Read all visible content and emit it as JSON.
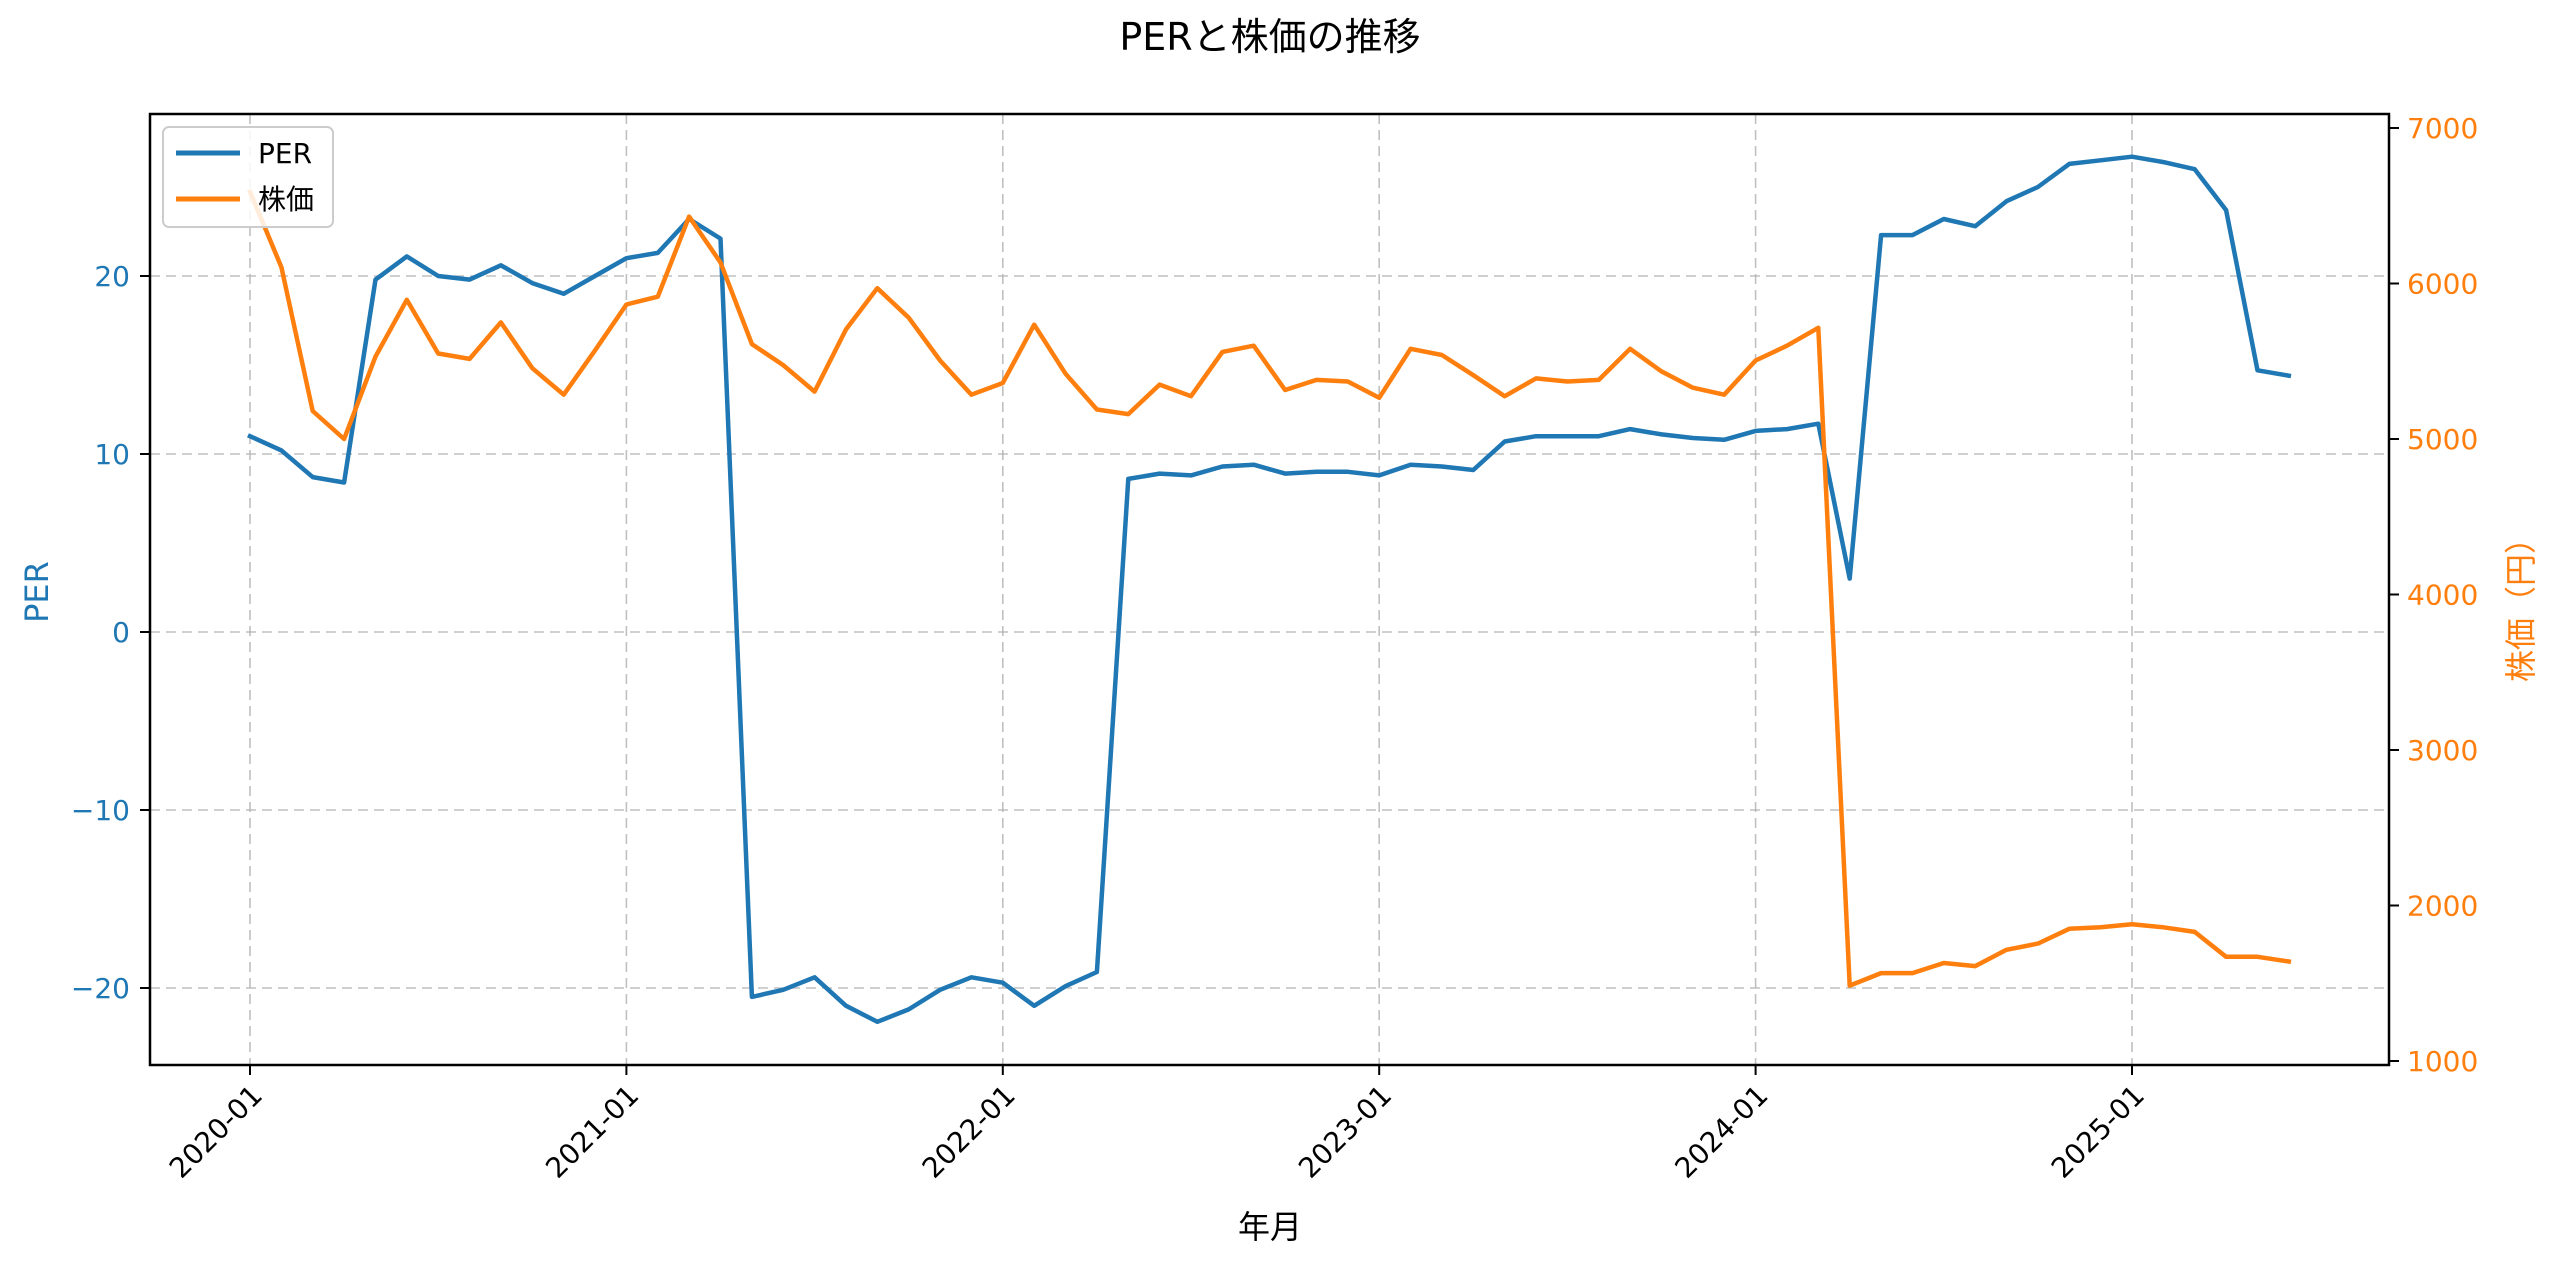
{
  "chart_data": {
    "type": "line",
    "title": "PERと株価の推移",
    "xlabel": "年月",
    "ylabel": "PER",
    "ylabel_right": "株価（円）",
    "x_ticks": [
      "2020-01",
      "2021-01",
      "2022-01",
      "2023-01",
      "2024-01",
      "2025-01"
    ],
    "y_ticks_left": [
      -20,
      -10,
      0,
      10,
      20
    ],
    "y_ticks_right": [
      1000,
      2000,
      3000,
      4000,
      5000,
      6000,
      7000
    ],
    "ylim_left": [
      -24.4,
      29.0
    ],
    "ylim_right": [
      950,
      7100
    ],
    "grid": true,
    "legend_position": "upper left",
    "legend": [
      "PER",
      "株価"
    ],
    "colors": {
      "PER": "#1f77b4",
      "株価": "#ff7f0e"
    },
    "x": [
      "2020-01",
      "2020-02",
      "2020-03",
      "2020-04",
      "2020-05",
      "2020-06",
      "2020-07",
      "2020-08",
      "2020-09",
      "2020-10",
      "2020-11",
      "2020-12",
      "2021-01",
      "2021-02",
      "2021-03",
      "2021-04",
      "2021-05",
      "2021-06",
      "2021-07",
      "2021-08",
      "2021-09",
      "2021-10",
      "2021-11",
      "2021-12",
      "2022-01",
      "2022-02",
      "2022-03",
      "2022-04",
      "2022-05",
      "2022-06",
      "2022-07",
      "2022-08",
      "2022-09",
      "2022-10",
      "2022-11",
      "2022-12",
      "2023-01",
      "2023-02",
      "2023-03",
      "2023-04",
      "2023-05",
      "2023-06",
      "2023-07",
      "2023-08",
      "2023-09",
      "2023-10",
      "2023-11",
      "2023-12",
      "2024-01",
      "2024-02",
      "2024-03",
      "2024-04",
      "2024-05",
      "2024-06",
      "2024-07",
      "2024-08",
      "2024-09",
      "2024-10",
      "2024-11",
      "2024-12",
      "2025-01",
      "2025-02",
      "2025-03",
      "2025-04",
      "2025-05",
      "2025-06"
    ],
    "series": [
      {
        "name": "PER",
        "axis": "left",
        "values": [
          11.0,
          10.2,
          8.7,
          8.4,
          19.8,
          21.1,
          20.0,
          19.8,
          20.6,
          19.6,
          19.0,
          20.0,
          21.0,
          21.3,
          23.2,
          22.1,
          -20.5,
          -20.1,
          -19.4,
          -21.0,
          -21.9,
          -21.2,
          -20.1,
          -19.4,
          -19.7,
          -21.0,
          -19.9,
          -19.1,
          8.6,
          8.9,
          8.8,
          9.3,
          9.4,
          8.9,
          9.0,
          9.0,
          8.8,
          9.4,
          9.3,
          9.1,
          10.7,
          11.0,
          11.0,
          11.0,
          11.4,
          11.1,
          10.9,
          10.8,
          11.3,
          11.4,
          11.7,
          3.0,
          22.3,
          22.3,
          23.2,
          22.8,
          24.2,
          25.0,
          26.3,
          26.5,
          26.7,
          26.4,
          26.0,
          23.7,
          14.7,
          14.4
        ]
      },
      {
        "name": "株価",
        "axis": "right",
        "values": [
          6590,
          6105,
          5180,
          5000,
          5530,
          5895,
          5550,
          5515,
          5750,
          5455,
          5285,
          5570,
          5865,
          5915,
          6430,
          6135,
          5610,
          5475,
          5305,
          5705,
          5970,
          5780,
          5505,
          5285,
          5360,
          5735,
          5420,
          5190,
          5160,
          5350,
          5275,
          5560,
          5600,
          5315,
          5380,
          5370,
          5265,
          5580,
          5540,
          5410,
          5275,
          5390,
          5370,
          5380,
          5580,
          5435,
          5330,
          5285,
          5505,
          5600,
          5715,
          1485,
          1565,
          1565,
          1630,
          1610,
          1715,
          1755,
          1850,
          1860,
          1880,
          1860,
          1830,
          1670,
          1670,
          1640
        ]
      }
    ]
  }
}
